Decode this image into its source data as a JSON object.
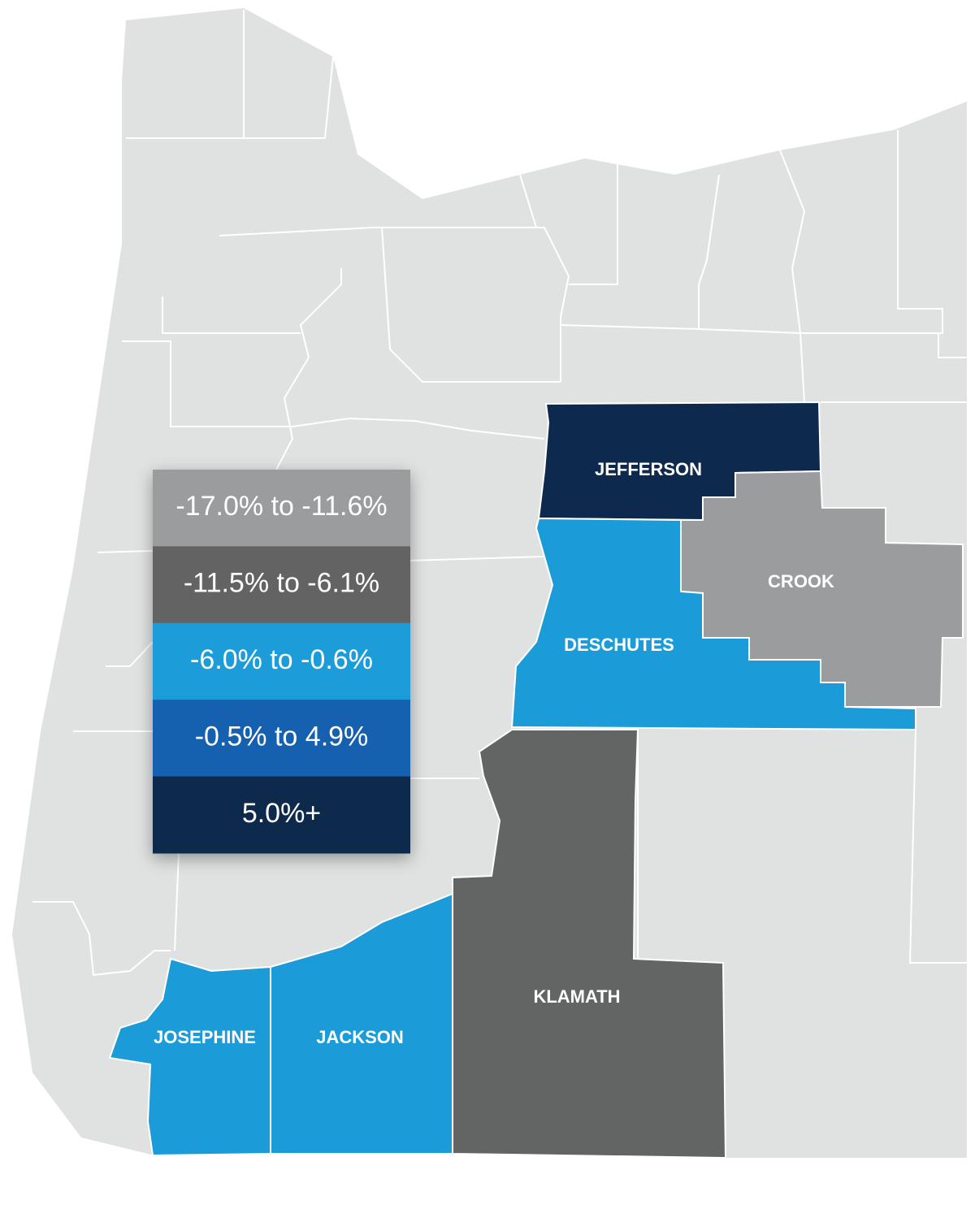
{
  "legend": [
    {
      "label": "-17.0% to -11.6%",
      "color": "#9a9c9e"
    },
    {
      "label": "-11.5% to -6.1%",
      "color": "#636464"
    },
    {
      "label": "-6.0% to -0.6%",
      "color": "#1b9cd8"
    },
    {
      "label": "-0.5% to 4.9%",
      "color": "#1760b0"
    },
    {
      "label": "5.0%+",
      "color": "#0d2a4e"
    }
  ],
  "counties": [
    {
      "name": "JEFFERSON",
      "color": "#0d2a4e"
    },
    {
      "name": "CROOK",
      "color": "#9a9c9e"
    },
    {
      "name": "DESCHUTES",
      "color": "#1b9cd8"
    },
    {
      "name": "KLAMATH",
      "color": "#636464"
    },
    {
      "name": "JACKSON",
      "color": "#1b9cd8"
    },
    {
      "name": "JOSEPHINE",
      "color": "#1b9cd8"
    }
  ]
}
